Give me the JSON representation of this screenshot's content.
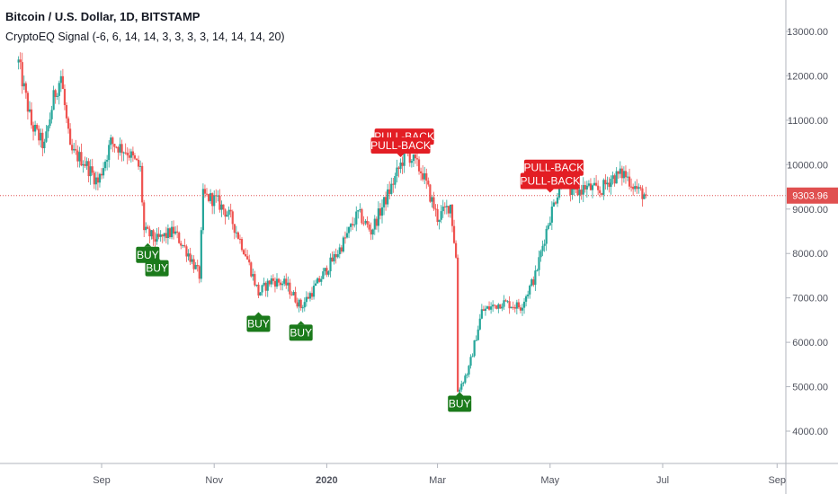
{
  "header": {
    "title": "Bitcoin / U.S. Dollar, 1D, BITSTAMP",
    "indicator": "CryptoEQ Signal (-6, 6, 14, 14, 3, 3, 3, 3, 14, 14, 14, 20)"
  },
  "colors": {
    "up": "#26a69a",
    "down": "#ef5350",
    "buy": "#1b7a1b",
    "pullback": "#e31e24",
    "priceline": "#e05050",
    "axis": "#50535e",
    "border": "#b2b5be"
  },
  "chart_data": {
    "type": "candlestick",
    "title": "Bitcoin / U.S. Dollar, 1D, BITSTAMP",
    "ylim": [
      3500,
      13900
    ],
    "y_ticks": [
      "4000.00",
      "5000.00",
      "6000.00",
      "7000.00",
      "8000.00",
      "9000.00",
      "10000.00",
      "11000.00",
      "12000.00",
      "13000.00"
    ],
    "x_ticks": [
      "Sep",
      "Nov",
      "2020",
      "Mar",
      "May",
      "Jul",
      "Sep"
    ],
    "last_price": "9303.96",
    "close_path": [
      [
        "2019-07-18",
        12300
      ],
      [
        "2019-07-25",
        10900
      ],
      [
        "2019-08-01",
        10400
      ],
      [
        "2019-08-06",
        11500
      ],
      [
        "2019-08-10",
        12000
      ],
      [
        "2019-08-15",
        10300
      ],
      [
        "2019-08-22",
        10100
      ],
      [
        "2019-08-30",
        9600
      ],
      [
        "2019-09-06",
        10500
      ],
      [
        "2019-09-15",
        10300
      ],
      [
        "2019-09-22",
        9900
      ],
      [
        "2019-09-24",
        8500
      ],
      [
        "2019-10-01",
        8300
      ],
      [
        "2019-10-10",
        8500
      ],
      [
        "2019-10-18",
        8000
      ],
      [
        "2019-10-24",
        7500
      ],
      [
        "2019-10-26",
        9300
      ],
      [
        "2019-11-02",
        9200
      ],
      [
        "2019-11-10",
        8800
      ],
      [
        "2019-11-18",
        8000
      ],
      [
        "2019-11-25",
        7100
      ],
      [
        "2019-12-02",
        7400
      ],
      [
        "2019-12-10",
        7300
      ],
      [
        "2019-12-18",
        6800
      ],
      [
        "2019-12-25",
        7200
      ],
      [
        "2020-01-08",
        8100
      ],
      [
        "2020-01-18",
        8900
      ],
      [
        "2020-01-25",
        8500
      ],
      [
        "2020-02-05",
        9500
      ],
      [
        "2020-02-13",
        10300
      ],
      [
        "2020-02-22",
        9800
      ],
      [
        "2020-03-01",
        8800
      ],
      [
        "2020-03-08",
        9100
      ],
      [
        "2020-03-11",
        7900
      ],
      [
        "2020-03-12",
        4900
      ],
      [
        "2020-03-18",
        5400
      ],
      [
        "2020-03-25",
        6700
      ],
      [
        "2020-04-05",
        6900
      ],
      [
        "2020-04-15",
        6800
      ],
      [
        "2020-04-23",
        7500
      ],
      [
        "2020-04-30",
        8700
      ],
      [
        "2020-05-08",
        9800
      ],
      [
        "2020-05-13",
        9300
      ],
      [
        "2020-05-20",
        9500
      ],
      [
        "2020-05-28",
        9400
      ],
      [
        "2020-06-03",
        9700
      ],
      [
        "2020-06-10",
        9800
      ],
      [
        "2020-06-18",
        9400
      ],
      [
        "2020-06-22",
        9304
      ]
    ],
    "signals": [
      {
        "label": "BUY",
        "date": "2019-09-26",
        "price": 8150,
        "kind": "buy"
      },
      {
        "label": "BUY",
        "date": "2019-10-01",
        "price": 7850,
        "kind": "buy"
      },
      {
        "label": "BUY",
        "date": "2019-11-25",
        "price": 6600,
        "kind": "buy"
      },
      {
        "label": "BUY",
        "date": "2019-12-18",
        "price": 6400,
        "kind": "buy"
      },
      {
        "label": "BUY",
        "date": "2020-03-13",
        "price": 4800,
        "kind": "buy"
      },
      {
        "label": "PULL-BACK",
        "date": "2020-02-12",
        "price": 10450,
        "kind": "pullback"
      },
      {
        "label": "PULL-BACK",
        "date": "2020-02-10",
        "price": 10250,
        "kind": "pullback"
      },
      {
        "label": "PULL-BACK",
        "date": "2020-05-03",
        "price": 9750,
        "kind": "pullback"
      },
      {
        "label": "PULL-BACK",
        "date": "2020-05-01",
        "price": 9450,
        "kind": "pullback"
      }
    ]
  }
}
